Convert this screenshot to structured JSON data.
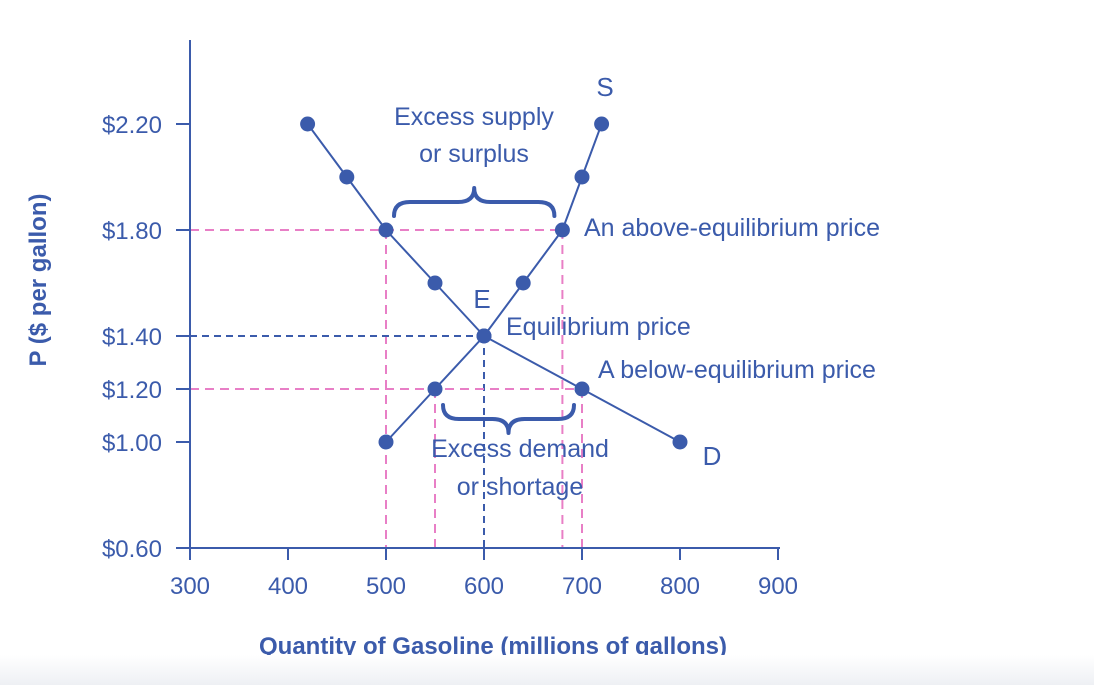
{
  "chart_data": {
    "type": "line",
    "title": "",
    "xlabel": "Quantity of Gasoline (millions of gallons)",
    "ylabel": "P ($ per gallon)",
    "xlim": [
      300,
      900
    ],
    "ylim": [
      0.6,
      2.4
    ],
    "x_ticks": [
      300,
      400,
      500,
      600,
      700,
      800,
      900
    ],
    "x_tick_labels": [
      "300",
      "400",
      "500",
      "600",
      "700",
      "800",
      "900"
    ],
    "y_ticks": [
      0.6,
      1.0,
      1.2,
      1.4,
      1.8,
      2.2
    ],
    "y_tick_labels": [
      "$0.60",
      "$1.00",
      "$1.20",
      "$1.40",
      "$1.80",
      "$2.20"
    ],
    "series": [
      {
        "name": "D",
        "points": [
          {
            "x": 420,
            "y": 2.2
          },
          {
            "x": 460,
            "y": 2.0
          },
          {
            "x": 500,
            "y": 1.8
          },
          {
            "x": 550,
            "y": 1.6
          },
          {
            "x": 600,
            "y": 1.4
          },
          {
            "x": 700,
            "y": 1.2
          },
          {
            "x": 800,
            "y": 1.0
          }
        ]
      },
      {
        "name": "S",
        "points": [
          {
            "x": 500,
            "y": 1.0
          },
          {
            "x": 550,
            "y": 1.2
          },
          {
            "x": 600,
            "y": 1.4
          },
          {
            "x": 640,
            "y": 1.6
          },
          {
            "x": 680,
            "y": 1.8
          },
          {
            "x": 700,
            "y": 2.0
          },
          {
            "x": 720,
            "y": 2.2
          }
        ]
      }
    ],
    "reference_lines": [
      {
        "id": "above",
        "y": 1.8,
        "x_end": 680,
        "color": "#e87fc6",
        "drops_to_axis": [
          500,
          680
        ]
      },
      {
        "id": "equilibrium",
        "y": 1.4,
        "x_end": 600,
        "color": "#3b5bab",
        "drops_to_axis": [
          600
        ]
      },
      {
        "id": "below",
        "y": 1.2,
        "x_end": 700,
        "color": "#e87fc6",
        "drops_to_axis": [
          550,
          700
        ]
      }
    ],
    "braces": [
      {
        "id": "surplus",
        "x_start": 500,
        "x_end": 680,
        "y": 1.8,
        "direction": "up"
      },
      {
        "id": "shortage",
        "x_start": 550,
        "x_end": 700,
        "y": 1.2,
        "direction": "down"
      }
    ],
    "annotations": {
      "surplus_line1": "Excess supply",
      "surplus_line2": "or surplus",
      "above_price": "An above-equilibrium price",
      "equilibrium_price": "Equilibrium price",
      "equilibrium_point": "E",
      "below_price": "A below-equilibrium price",
      "shortage_line1": "Excess demand",
      "shortage_line2": "or shortage"
    },
    "grid": false,
    "legend": "none",
    "colors": {
      "curve": "#3b5bab",
      "pink_dash": "#e87fc6",
      "text": "#3b5bab"
    }
  }
}
